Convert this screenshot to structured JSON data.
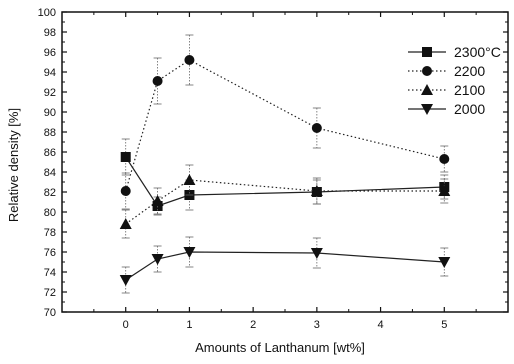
{
  "chart_data": {
    "type": "line",
    "xlabel": "Amounts of Lanthanum [wt%]",
    "ylabel": "Relative density [%]",
    "xlim": [
      -1,
      6
    ],
    "ylim": [
      70,
      100
    ],
    "x_ticks": [
      0,
      1,
      2,
      3,
      4,
      5
    ],
    "y_ticks": [
      70,
      72,
      74,
      76,
      78,
      80,
      82,
      84,
      86,
      88,
      90,
      92,
      94,
      96,
      98,
      100
    ],
    "legend_position": "top-right",
    "series": [
      {
        "name": "2300°C",
        "marker": "square",
        "line_style": "solid",
        "x": [
          0,
          0.5,
          1,
          3,
          5
        ],
        "y": [
          85.5,
          80.6,
          81.7,
          82.0,
          82.5
        ],
        "error": [
          1.8,
          0.9,
          1.5,
          1.2,
          1.2
        ]
      },
      {
        "name": "2200",
        "marker": "circle",
        "line_style": "dotted",
        "x": [
          0,
          0.5,
          1,
          3,
          5
        ],
        "y": [
          82.1,
          93.1,
          95.2,
          88.4,
          85.3
        ],
        "error": [
          1.8,
          2.3,
          2.5,
          2.0,
          1.3
        ]
      },
      {
        "name": "2100",
        "marker": "triangle-up",
        "line_style": "dotted",
        "x": [
          0,
          0.5,
          1,
          3,
          5
        ],
        "y": [
          78.8,
          81.1,
          83.2,
          82.1,
          82.1
        ],
        "error": [
          1.4,
          1.3,
          1.5,
          1.3,
          1.2
        ]
      },
      {
        "name": "2000",
        "marker": "triangle-down",
        "line_style": "solid",
        "x": [
          0,
          0.5,
          1,
          3,
          5
        ],
        "y": [
          73.2,
          75.3,
          76.0,
          75.9,
          75.0
        ],
        "error": [
          1.3,
          1.3,
          1.5,
          1.5,
          1.4
        ]
      }
    ]
  }
}
